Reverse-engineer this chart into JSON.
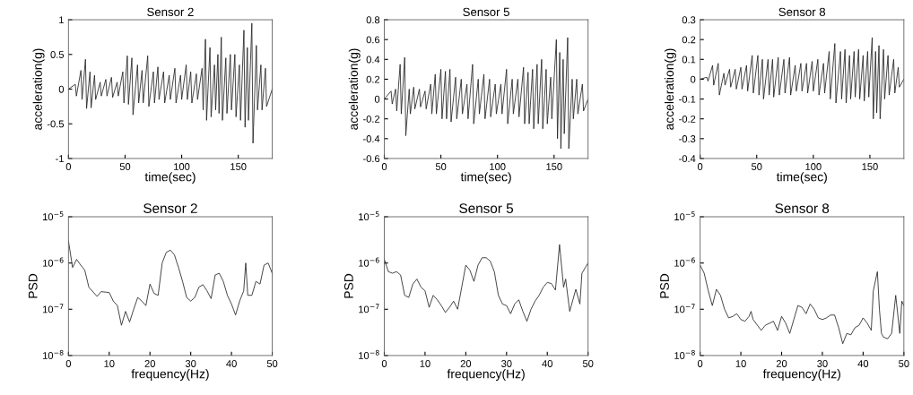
{
  "chart_data": [
    {
      "type": "line",
      "title": "Sensor 2",
      "xlabel": "time(sec)",
      "ylabel": "acceleration(g)",
      "xlim": [
        0,
        180
      ],
      "xticks": [
        0,
        50,
        100,
        150
      ],
      "ylim": [
        -1,
        1
      ],
      "yticks": [
        -1,
        -0.5,
        0,
        0.5,
        1
      ],
      "grid": false,
      "series": [
        {
          "color": "#222222",
          "x": [
            0,
            6,
            7,
            11,
            12,
            15,
            16,
            19,
            20,
            23,
            24,
            28,
            29,
            33,
            34,
            38,
            39,
            43,
            44,
            48,
            49,
            52,
            53,
            56,
            57,
            61,
            62,
            65,
            66,
            70,
            71,
            75,
            76,
            79,
            80,
            84,
            85,
            89,
            90,
            94,
            95,
            99,
            100,
            104,
            105,
            108,
            109,
            113,
            114,
            118,
            119,
            121,
            122,
            125,
            126,
            129,
            130,
            132,
            133,
            135,
            136,
            139,
            140,
            143,
            144,
            147,
            148,
            151,
            152,
            155,
            156,
            158,
            159,
            162,
            163,
            166,
            167,
            170,
            171,
            174,
            175,
            180
          ],
          "values": [
            0,
            0.07,
            -0.1,
            0.27,
            -0.15,
            0.43,
            -0.28,
            0.25,
            -0.27,
            0.2,
            -0.15,
            0.1,
            -0.1,
            0.14,
            -0.1,
            0.17,
            -0.12,
            0.1,
            -0.1,
            0.25,
            -0.2,
            0.48,
            -0.22,
            0.45,
            -0.37,
            0.35,
            -0.2,
            0.27,
            -0.2,
            0.48,
            -0.25,
            0.25,
            -0.2,
            0.32,
            -0.15,
            0.25,
            -0.2,
            0.2,
            -0.15,
            0.3,
            -0.2,
            0.2,
            -0.15,
            0.35,
            -0.15,
            0.25,
            -0.2,
            0.22,
            -0.15,
            0.3,
            -0.3,
            0.72,
            -0.45,
            0.6,
            -0.4,
            0.35,
            -0.3,
            0.5,
            -0.35,
            0.75,
            -0.45,
            0.45,
            -0.35,
            0.5,
            -0.3,
            0.5,
            -0.4,
            0.35,
            -0.45,
            0.85,
            -0.55,
            0.6,
            -0.45,
            0.95,
            -0.78,
            0.63,
            -0.3,
            0.35,
            -0.3,
            0.3,
            -0.25,
            0
          ]
        }
      ]
    },
    {
      "type": "line",
      "title": "Sensor 5",
      "xlabel": "time(sec)",
      "ylabel": "acceleration(g)",
      "xlim": [
        0,
        180
      ],
      "xticks": [
        0,
        50,
        100,
        150
      ],
      "ylim": [
        -0.6,
        0.8
      ],
      "yticks": [
        -0.6,
        -0.4,
        -0.2,
        0,
        0.2,
        0.4,
        0.6,
        0.8
      ],
      "grid": false,
      "series": [
        {
          "color": "#222222",
          "x": [
            0,
            6,
            7,
            10,
            11,
            14,
            15,
            18,
            19,
            22,
            23,
            26,
            27,
            31,
            32,
            36,
            37,
            41,
            42,
            45,
            46,
            50,
            51,
            54,
            55,
            58,
            59,
            63,
            64,
            68,
            69,
            73,
            74,
            78,
            79,
            83,
            84,
            88,
            89,
            93,
            94,
            98,
            99,
            103,
            104,
            108,
            109,
            113,
            114,
            118,
            119,
            123,
            124,
            127,
            128,
            131,
            132,
            135,
            136,
            139,
            140,
            143,
            144,
            147,
            148,
            152,
            153,
            155,
            156,
            158,
            159,
            162,
            163,
            166,
            167,
            170,
            171,
            175,
            176,
            180
          ],
          "values": [
            0,
            0.08,
            -0.05,
            0.1,
            -0.12,
            0.35,
            -0.15,
            0.42,
            -0.37,
            0.1,
            -0.15,
            0.12,
            -0.1,
            0.1,
            -0.08,
            0.08,
            -0.1,
            0.15,
            -0.15,
            0.25,
            -0.15,
            0.3,
            -0.2,
            0.28,
            -0.2,
            0.3,
            -0.23,
            0.22,
            -0.2,
            0.2,
            -0.15,
            0.15,
            -0.2,
            0.35,
            -0.25,
            0.2,
            -0.15,
            0.25,
            -0.2,
            0.2,
            -0.18,
            0.15,
            -0.15,
            0.15,
            -0.15,
            0.3,
            -0.25,
            0.2,
            -0.15,
            0.2,
            -0.18,
            0.32,
            -0.25,
            0.27,
            -0.25,
            0.3,
            -0.3,
            0.35,
            -0.25,
            0.4,
            -0.3,
            0.3,
            -0.25,
            0.22,
            -0.2,
            0.6,
            -0.4,
            0.47,
            -0.5,
            0.4,
            -0.35,
            0.62,
            -0.5,
            0.2,
            -0.2,
            0.2,
            -0.15,
            0.15,
            -0.12,
            0
          ]
        }
      ]
    },
    {
      "type": "line",
      "title": "Sensor 8",
      "xlabel": "time(sec)",
      "ylabel": "acceleration(g)",
      "xlim": [
        0,
        180
      ],
      "xticks": [
        0,
        50,
        100,
        150
      ],
      "ylim": [
        -0.4,
        0.3
      ],
      "yticks": [
        -0.4,
        -0.3,
        -0.2,
        -0.1,
        0,
        0.1,
        0.2,
        0.3
      ],
      "grid": false,
      "series": [
        {
          "color": "#222222",
          "x": [
            0,
            6,
            7,
            11,
            12,
            16,
            17,
            21,
            22,
            26,
            27,
            31,
            32,
            36,
            37,
            41,
            42,
            46,
            47,
            51,
            52,
            55,
            56,
            60,
            61,
            64,
            65,
            69,
            70,
            74,
            75,
            79,
            80,
            84,
            85,
            89,
            90,
            94,
            95,
            99,
            100,
            104,
            105,
            109,
            110,
            114,
            115,
            119,
            120,
            124,
            125,
            128,
            129,
            132,
            133,
            136,
            137,
            140,
            141,
            144,
            145,
            148,
            149,
            152,
            153,
            155,
            156,
            158,
            159,
            162,
            163,
            166,
            167,
            171,
            172,
            175,
            176,
            180
          ],
          "values": [
            0,
            0.01,
            -0.01,
            0.07,
            -0.03,
            0.08,
            -0.08,
            0.03,
            -0.03,
            0.05,
            -0.04,
            0.05,
            -0.05,
            0.06,
            -0.05,
            0.07,
            -0.06,
            0.12,
            -0.07,
            0.12,
            -0.08,
            0.1,
            -0.1,
            0.1,
            -0.08,
            0.1,
            -0.09,
            0.11,
            -0.08,
            0.1,
            -0.07,
            0.11,
            -0.08,
            0.07,
            -0.06,
            0.08,
            -0.06,
            0.08,
            -0.07,
            0.09,
            -0.06,
            0.1,
            -0.08,
            0.08,
            -0.07,
            0.14,
            -0.1,
            0.18,
            -0.12,
            0.14,
            -0.1,
            0.15,
            -0.12,
            0.12,
            -0.1,
            0.14,
            -0.09,
            0.15,
            -0.1,
            0.12,
            -0.11,
            0.14,
            -0.09,
            0.21,
            -0.2,
            0.14,
            -0.17,
            0.17,
            -0.2,
            0.15,
            -0.1,
            0.12,
            -0.08,
            0.1,
            -0.07,
            0.06,
            -0.04,
            0
          ]
        }
      ]
    },
    {
      "type": "line",
      "title": "Sensor 2",
      "xlabel": "frequency(Hz)",
      "ylabel": "PSD",
      "log": "y",
      "xlim": [
        0,
        50
      ],
      "xticks": [
        0,
        10,
        20,
        30,
        40,
        50
      ],
      "ylim": [
        1e-08,
        1e-05
      ],
      "yticks": [
        {
          "value": 1e-08,
          "label": "10$^{−8}$"
        },
        {
          "value": 1e-07,
          "label": "10$^{−7}$"
        },
        {
          "value": 1e-06,
          "label": "10$^{−6}$"
        },
        {
          "value": 1e-05,
          "label": "10$^{−5}$"
        }
      ],
      "grid": false,
      "series": [
        {
          "color": "#222222",
          "x": [
            0,
            1,
            2,
            3,
            4,
            5,
            7,
            8,
            10,
            11,
            12,
            13,
            14,
            15,
            16,
            17,
            18,
            19,
            20,
            21,
            22,
            23,
            24,
            25,
            26,
            27,
            28,
            29,
            30,
            31,
            32,
            33,
            34,
            35,
            36,
            37,
            38,
            39,
            40,
            41,
            42,
            43,
            43.5,
            44,
            45,
            46,
            47,
            48,
            49,
            50
          ],
          "values": [
            3e-06,
            8e-07,
            1.2e-06,
            9e-07,
            7e-07,
            3e-07,
            1.9e-07,
            2.4e-07,
            2.3e-07,
            1.5e-07,
            1.2e-07,
            4.5e-08,
            9e-08,
            5.3e-08,
            1e-07,
            1.8e-07,
            1.5e-07,
            1.2e-07,
            3.5e-07,
            2.2e-07,
            2e-07,
            1e-06,
            1.7e-06,
            1.9e-06,
            1.5e-06,
            8e-07,
            4e-07,
            1.8e-07,
            1.5e-07,
            1.8e-07,
            3e-07,
            3.4e-07,
            2.5e-07,
            1.7e-07,
            5.5e-07,
            6e-07,
            4e-07,
            2e-07,
            1.3e-07,
            7.5e-08,
            1.5e-07,
            2.5e-07,
            1e-06,
            2e-07,
            2e-07,
            4e-07,
            3.5e-07,
            9e-07,
            1e-06,
            6e-07
          ]
        }
      ]
    },
    {
      "type": "line",
      "title": "Sensor 5",
      "xlabel": "frequency(Hz)",
      "ylabel": "PSD",
      "log": "y",
      "xlim": [
        0,
        50
      ],
      "xticks": [
        0,
        10,
        20,
        30,
        40,
        50
      ],
      "ylim": [
        1e-08,
        1e-05
      ],
      "yticks": [
        {
          "value": 1e-08,
          "label": "10$^{−8}$"
        },
        {
          "value": 1e-07,
          "label": "10$^{−7}$"
        },
        {
          "value": 1e-06,
          "label": "10$^{−6}$"
        },
        {
          "value": 1e-05,
          "label": "10$^{−5}$"
        }
      ],
      "grid": false,
      "series": [
        {
          "color": "#222222",
          "x": [
            0,
            1,
            2,
            3,
            4,
            5,
            6,
            7,
            8,
            9,
            10,
            11,
            12,
            13,
            14,
            15,
            16,
            17,
            18,
            19,
            20,
            21,
            22,
            23,
            24,
            25,
            26,
            27,
            28,
            29,
            30,
            31,
            32,
            33,
            34,
            35,
            36,
            37,
            38,
            39,
            40,
            41,
            42,
            43,
            44,
            44.5,
            45.5,
            47,
            48,
            48.5,
            50
          ],
          "values": [
            1.2e-06,
            6.5e-07,
            6e-07,
            6.5e-07,
            5.5e-07,
            2e-07,
            1.8e-07,
            3.5e-07,
            4.5e-07,
            3e-07,
            2.5e-07,
            1.1e-07,
            2e-07,
            1.6e-07,
            1.2e-07,
            8.5e-08,
            1.1e-07,
            1.5e-07,
            1e-07,
            3e-07,
            9e-07,
            7e-07,
            4e-07,
            9e-07,
            1.3e-06,
            1.3e-06,
            1.1e-06,
            6.5e-07,
            2e-07,
            1.3e-07,
            1.2e-07,
            8e-08,
            1.3e-07,
            1.6e-07,
            9e-08,
            5.5e-08,
            1e-07,
            1.5e-07,
            2e-07,
            3e-07,
            3.8e-07,
            3.6e-07,
            2.6e-07,
            2.5e-06,
            3e-07,
            4.5e-07,
            9e-08,
            2.7e-07,
            1.3e-07,
            6e-07,
            1e-06
          ]
        }
      ]
    },
    {
      "type": "line",
      "title": "Sensor 8",
      "xlabel": "frequency(Hz)",
      "ylabel": "PSD",
      "log": "y",
      "xlim": [
        0,
        50
      ],
      "xticks": [
        0,
        10,
        20,
        30,
        40,
        50
      ],
      "ylim": [
        1e-08,
        1e-05
      ],
      "yticks": [
        {
          "value": 1e-08,
          "label": "10$^{−8}$"
        },
        {
          "value": 1e-07,
          "label": "10$^{−7}$"
        },
        {
          "value": 1e-06,
          "label": "10$^{−6}$"
        },
        {
          "value": 1e-05,
          "label": "10$^{−5}$"
        }
      ],
      "grid": false,
      "series": [
        {
          "color": "#222222",
          "x": [
            0,
            1,
            2,
            3,
            4,
            5,
            6,
            7,
            8,
            9,
            10,
            11,
            12,
            12.5,
            13,
            15,
            16,
            18,
            19,
            20,
            21,
            22,
            23,
            24,
            25,
            26,
            27,
            28,
            29,
            30,
            31,
            32,
            33,
            34,
            35,
            36,
            37,
            38,
            39,
            40,
            41,
            42,
            42.5,
            43.5,
            44,
            44.5,
            45,
            46,
            47,
            48,
            49,
            49.5,
            50
          ],
          "values": [
            9e-07,
            6e-07,
            2.5e-07,
            1.2e-07,
            2.7e-07,
            2e-07,
            1e-07,
            6.5e-08,
            7e-08,
            8e-08,
            6e-08,
            5.5e-08,
            7e-08,
            9e-08,
            6e-08,
            3.5e-08,
            4.5e-08,
            5.5e-08,
            3.5e-08,
            7e-08,
            5e-08,
            3e-08,
            6e-08,
            1.2e-07,
            1.1e-07,
            8e-08,
            1.3e-07,
            1e-07,
            6.5e-08,
            6e-08,
            6.5e-08,
            7.5e-08,
            7.5e-08,
            4e-08,
            1.8e-08,
            3e-08,
            2.8e-08,
            4e-08,
            4.5e-08,
            6.5e-08,
            5e-08,
            3.5e-08,
            2.5e-07,
            6.5e-07,
            1e-07,
            3e-08,
            2.5e-08,
            2.3e-08,
            3e-08,
            2e-07,
            3e-08,
            1.5e-07,
            1.2e-07
          ]
        }
      ]
    }
  ]
}
